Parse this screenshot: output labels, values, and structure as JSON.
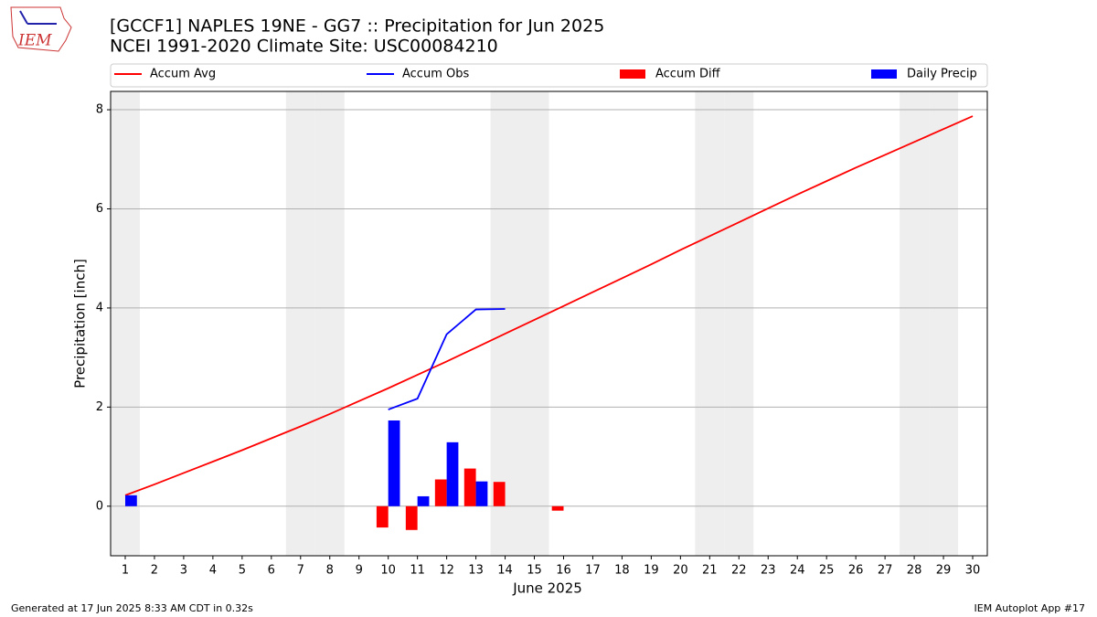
{
  "chart_data": {
    "type": "combo",
    "title": "[GCCF1] NAPLES 19NE - GG7 :: Precipitation for Jun 2025",
    "subtitle": "NCEI 1991-2020 Climate Site: USC00084210",
    "xlabel": "June 2025",
    "ylabel": "Precipitation [inch]",
    "x": [
      1,
      2,
      3,
      4,
      5,
      6,
      7,
      8,
      9,
      10,
      11,
      12,
      13,
      14,
      15,
      16,
      17,
      18,
      19,
      20,
      21,
      22,
      23,
      24,
      25,
      26,
      27,
      28,
      29,
      30
    ],
    "xlim": [
      0.5,
      30.5
    ],
    "xticks": [
      1,
      2,
      3,
      4,
      5,
      6,
      7,
      8,
      9,
      10,
      11,
      12,
      13,
      14,
      15,
      16,
      17,
      18,
      19,
      20,
      21,
      22,
      23,
      24,
      25,
      26,
      27,
      28,
      29,
      30
    ],
    "ylim": [
      -1,
      8.37
    ],
    "yticks": [
      0,
      2,
      4,
      6,
      8
    ],
    "grid": true,
    "shaded_days": [
      1,
      7,
      8,
      14,
      15,
      21,
      22,
      28,
      29
    ],
    "series": [
      {
        "name": "Accum Avg",
        "type": "line",
        "color": "#ff0000",
        "values": [
          0.22,
          0.44,
          0.67,
          0.9,
          1.13,
          1.37,
          1.61,
          1.86,
          2.12,
          2.38,
          2.65,
          2.92,
          3.2,
          3.48,
          3.76,
          4.04,
          4.32,
          4.6,
          4.88,
          5.17,
          5.45,
          5.73,
          6.01,
          6.29,
          6.56,
          6.83,
          7.09,
          7.35,
          7.61,
          7.87
        ]
      },
      {
        "name": "Accum Obs",
        "type": "line",
        "color": "#0000ff",
        "values": [
          null,
          null,
          null,
          null,
          null,
          null,
          null,
          null,
          null,
          1.95,
          2.17,
          3.47,
          3.97,
          3.98,
          null,
          null,
          null,
          null,
          null,
          null,
          null,
          null,
          null,
          null,
          null,
          null,
          null,
          null,
          null,
          null
        ]
      },
      {
        "name": "Accum Diff",
        "type": "bar",
        "offset": -0.2,
        "color": "#ff0000",
        "values": [
          null,
          null,
          null,
          null,
          null,
          null,
          null,
          null,
          null,
          -0.43,
          -0.48,
          0.54,
          0.76,
          0.49,
          null,
          -0.09,
          null,
          null,
          null,
          null,
          null,
          null,
          null,
          null,
          null,
          null,
          null,
          null,
          null,
          null
        ]
      },
      {
        "name": "Daily Precip",
        "type": "bar",
        "offset": 0.2,
        "color": "#0000ff",
        "values": [
          0.22,
          null,
          null,
          null,
          null,
          null,
          null,
          null,
          null,
          1.73,
          0.2,
          1.29,
          0.5,
          null,
          null,
          null,
          null,
          null,
          null,
          null,
          null,
          null,
          null,
          null,
          null,
          null,
          null,
          null,
          null,
          null
        ]
      }
    ]
  },
  "logo_text": "IEM",
  "footer_left": "Generated at 17 Jun 2025 8:33 AM CDT in 0.32s",
  "footer_right": "IEM Autoplot App #17"
}
